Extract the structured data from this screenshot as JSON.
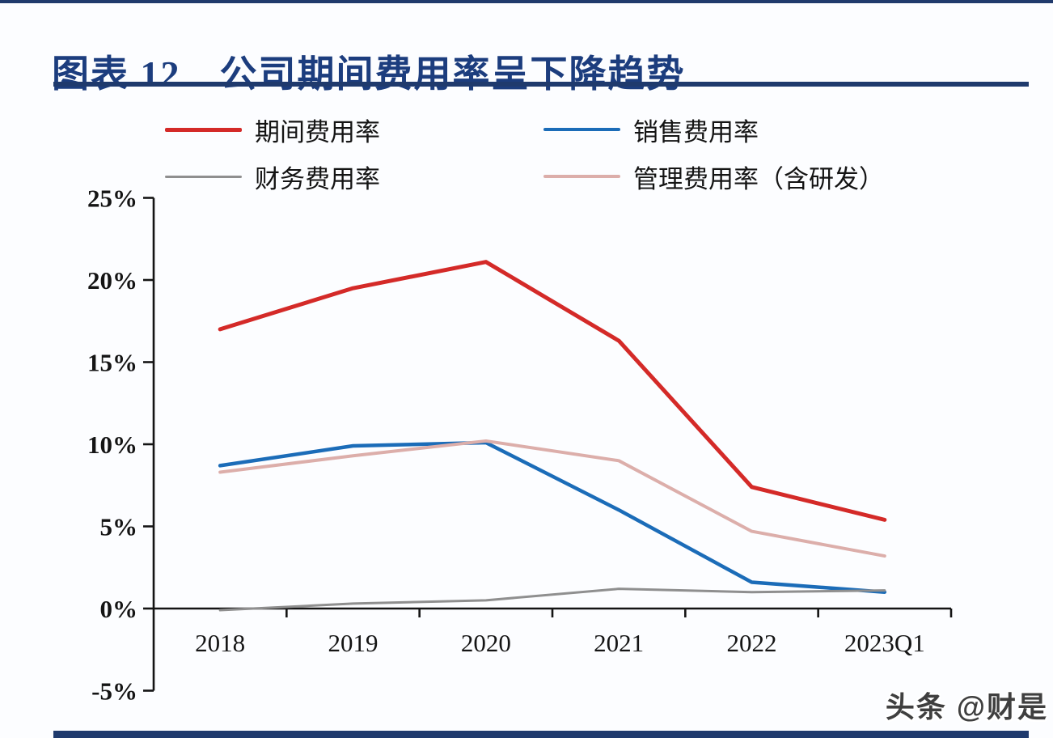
{
  "page": {
    "title": "图表 12　公司期间费用率呈下降趋势",
    "watermark": "头条 @财是",
    "accent_color": "#1f3a6d",
    "background_color": "#fcfdff"
  },
  "chart_data": {
    "type": "line",
    "title": "公司期间费用率呈下降趋势",
    "figure_number": "图表 12",
    "categories": [
      "2018",
      "2019",
      "2020",
      "2021",
      "2022",
      "2023Q1"
    ],
    "series": [
      {
        "key": "period-expense-ratio",
        "name": "期间费用率",
        "color": "#d42a28",
        "line_width": 5,
        "values": [
          17.0,
          19.5,
          21.1,
          16.3,
          7.4,
          5.4
        ]
      },
      {
        "key": "selling-expense-ratio",
        "name": "销售费用率",
        "color": "#1b6cb8",
        "line_width": 4.5,
        "values": [
          8.7,
          9.9,
          10.1,
          6.0,
          1.6,
          1.0
        ]
      },
      {
        "key": "finance-expense-ratio",
        "name": "财务费用率",
        "color": "#8f8f8f",
        "line_width": 3,
        "values": [
          -0.1,
          0.3,
          0.5,
          1.2,
          1.0,
          1.1
        ]
      },
      {
        "key": "admin-expense-ratio",
        "name": "管理费用率（含研发）",
        "color": "#dcaeaa",
        "line_width": 4,
        "values": [
          8.3,
          9.3,
          10.2,
          9.0,
          4.7,
          3.2
        ]
      }
    ],
    "xlabel": "",
    "ylabel": "",
    "ylim": [
      -5,
      25
    ],
    "ytick_step": 5,
    "ytick_labels": [
      "25%",
      "20%",
      "15%",
      "10%",
      "5%",
      "0%",
      "-5%"
    ],
    "grid": false,
    "legend_position": "top",
    "axis_color": "#141414"
  }
}
